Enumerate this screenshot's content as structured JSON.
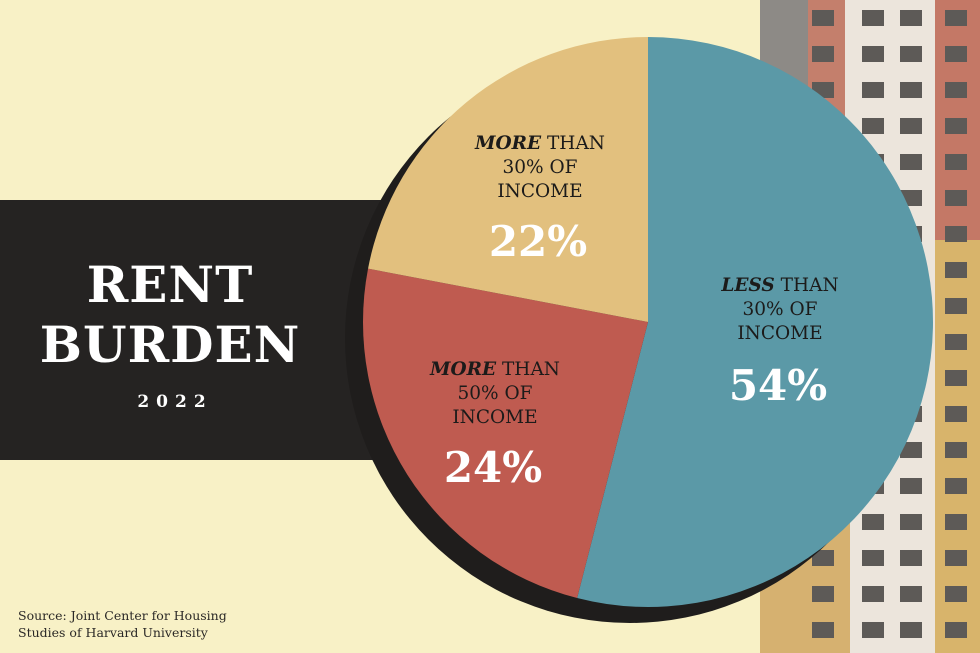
{
  "chart_data": {
    "type": "pie",
    "title": "RENT BURDEN",
    "subtitle": "2022",
    "slices": [
      {
        "label_emph": "LESS",
        "label_line1": "THAN",
        "label_line2": "30% OF",
        "label_line3": "INCOME",
        "value": 54,
        "display": "54%",
        "color": "#5b99a7"
      },
      {
        "label_emph": "MORE",
        "label_line1": "THAN",
        "label_line2": "50% OF",
        "label_line3": "INCOME",
        "value": 24,
        "display": "24%",
        "color": "#bf5b50"
      },
      {
        "label_emph": "MORE",
        "label_line1": "THAN",
        "label_line2": "30% OF",
        "label_line3": "INCOME",
        "value": 22,
        "display": "22%",
        "color": "#e2c07e"
      }
    ]
  },
  "header": {
    "title_line1": "RENT",
    "title_line2": "BURDEN",
    "year": "2022"
  },
  "footer": {
    "source_line1": "Source: Joint Center for Housing",
    "source_line2": "Studies of Harvard University"
  },
  "colors": {
    "background": "#f8f1c6",
    "band": "#252322",
    "building_brick": "#c2786a",
    "building_yellow": "#d9b46d"
  }
}
